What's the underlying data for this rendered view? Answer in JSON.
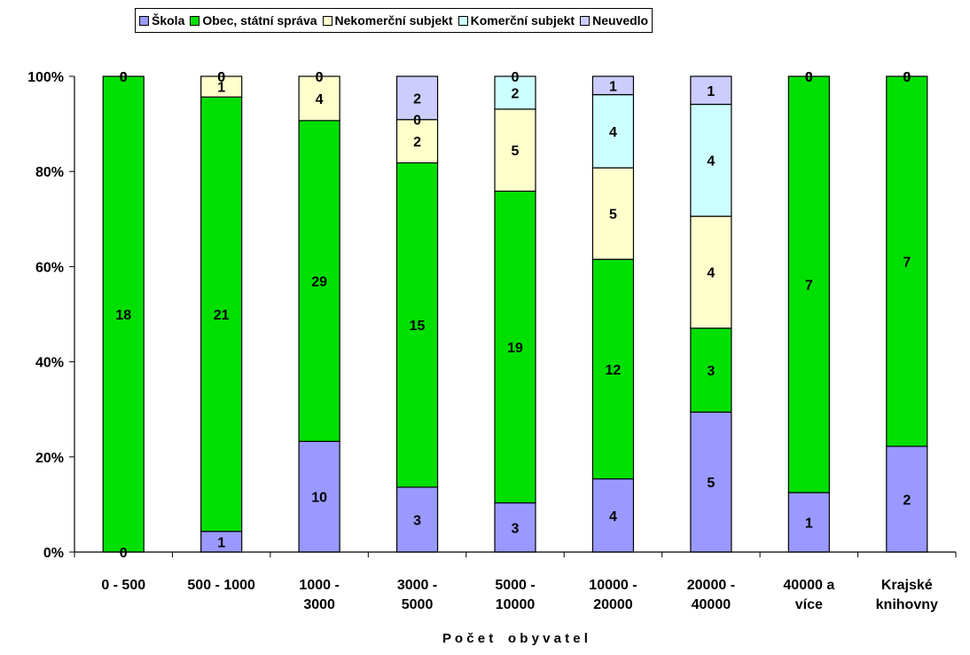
{
  "chart_data": {
    "type": "bar",
    "stacked": "percent",
    "xlabel": "P o č e t    o b y v a t e l",
    "ylabel": "",
    "ylim": [
      0,
      100
    ],
    "y_ticks": [
      "0%",
      "20%",
      "40%",
      "60%",
      "80%",
      "100%"
    ],
    "grid": false,
    "legend_position": "top",
    "categories": [
      [
        "0 - 500"
      ],
      [
        "500 - 1000"
      ],
      [
        "1000 -",
        "3000"
      ],
      [
        "3000 -",
        "5000"
      ],
      [
        "5000 -",
        "10000"
      ],
      [
        "10000 -",
        "20000"
      ],
      [
        "20000 -",
        "40000"
      ],
      [
        "40000 a",
        "více"
      ],
      [
        "Krajské",
        "knihovny"
      ]
    ],
    "series": [
      {
        "name": "Škola",
        "color": "#9999ff",
        "values": [
          0,
          1,
          10,
          3,
          3,
          4,
          5,
          1,
          2
        ]
      },
      {
        "name": "Obec, státní správa",
        "color": "#00e000",
        "values": [
          18,
          21,
          29,
          15,
          19,
          12,
          3,
          7,
          7
        ]
      },
      {
        "name": "Nekomerční subjekt",
        "color": "#ffffcc",
        "values": [
          0,
          1,
          4,
          2,
          5,
          5,
          4,
          0,
          0
        ]
      },
      {
        "name": "Komerční subjekt",
        "color": "#ccffff",
        "values": [
          0,
          0,
          0,
          0,
          2,
          4,
          4,
          0,
          0
        ]
      },
      {
        "name": "Neuvedlo",
        "color": "#ccccff",
        "values": [
          0,
          0,
          0,
          2,
          0,
          1,
          1,
          0,
          0
        ]
      }
    ]
  }
}
